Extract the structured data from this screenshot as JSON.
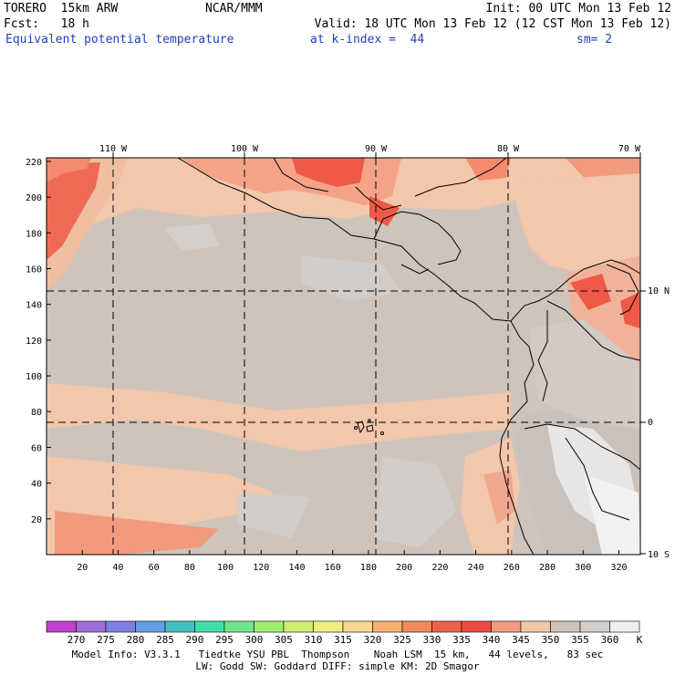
{
  "header": {
    "model": "TORERO  15km ARW",
    "org": "NCAR/MMM",
    "init": "Init: 00 UTC Mon 13 Feb 12",
    "fcst": "Fcst:   18 h",
    "valid": "Valid: 18 UTC Mon 13 Feb 12 (12 CST Mon 13 Feb 12)",
    "field": "Equivalent potential temperature",
    "level": "at k-index =  44",
    "smooth": "sm= 2"
  },
  "top_lon_labels": [
    "110 W",
    "100 W",
    "90 W",
    "80 W",
    "70 W"
  ],
  "right_lat_labels": [
    "10 N",
    "0",
    "10 S"
  ],
  "left_ticks": [
    "220",
    "200",
    "180",
    "160",
    "140",
    "120",
    "100",
    "80",
    "60",
    "40",
    "20"
  ],
  "bottom_ticks": [
    "20",
    "40",
    "60",
    "80",
    "100",
    "120",
    "140",
    "160",
    "180",
    "200",
    "220",
    "240",
    "260",
    "280",
    "300",
    "320"
  ],
  "colorbar": {
    "unit": "K",
    "labels": [
      "270",
      "275",
      "280",
      "285",
      "290",
      "295",
      "300",
      "305",
      "310",
      "315",
      "320",
      "325",
      "330",
      "335",
      "340",
      "345",
      "350",
      "355",
      "360"
    ],
    "colors": [
      "#c23fd0",
      "#9f6fd6",
      "#7f7fe6",
      "#5f9fe6",
      "#3fc2c2",
      "#3fdfa8",
      "#6fe68a",
      "#9fef6f",
      "#cfef6f",
      "#efef7f",
      "#f7d98f",
      "#f7b06f",
      "#f48a5a",
      "#f2604a",
      "#ef4a40",
      "#f49a80",
      "#f0c8a8",
      "#cfc2b8",
      "#d6d0cc",
      "#eeeeee"
    ]
  },
  "footer": {
    "line1": "Model Info: V3.3.1   Tiedtke YSU PBL  Thompson    Noah LSM  15 km,   44 levels,   83 sec",
    "line2": "LW: Godd SW: Goddard DIFF: simple KM: 2D Smagor"
  }
}
